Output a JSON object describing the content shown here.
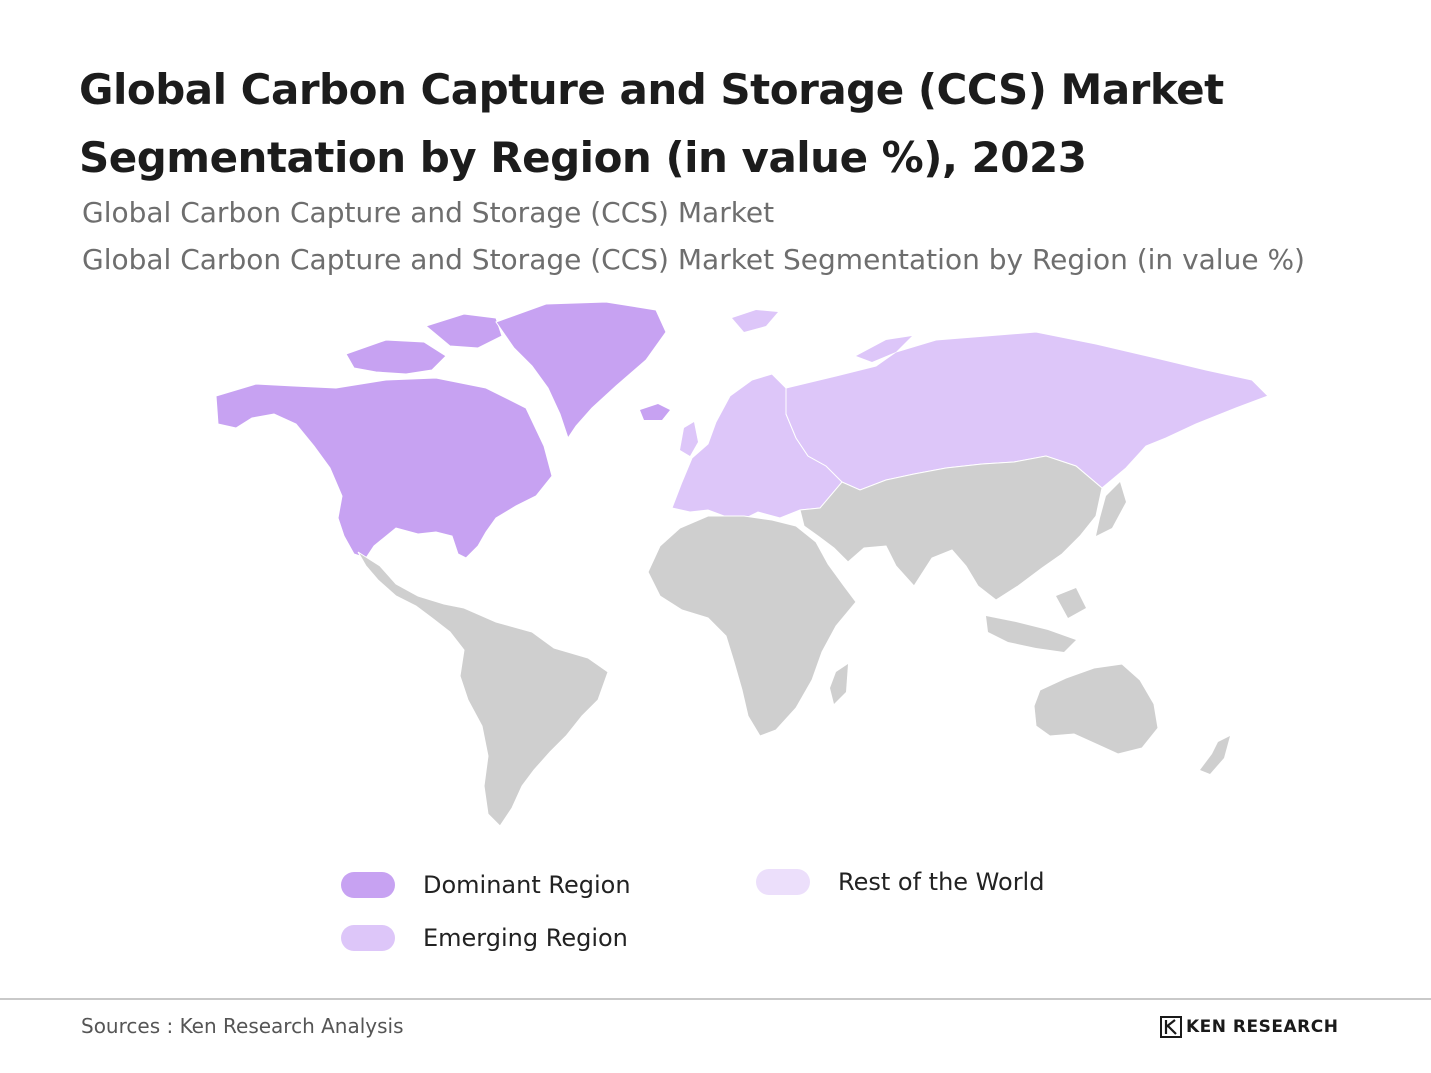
{
  "header": {
    "title": "Global Carbon Capture and Storage (CCS) Market Segmentation by Region (in value %), 2023",
    "subtitle_line1": "Global Carbon Capture and Storage (CCS) Market",
    "subtitle_line2": "Global Carbon Capture and Storage (CCS) Market Segmentation by Region (in value %)"
  },
  "map": {
    "regions": [
      {
        "name": "North America",
        "category": "Dominant Region"
      },
      {
        "name": "Greenland",
        "category": "Dominant Region"
      },
      {
        "name": "Europe",
        "category": "Emerging Region"
      },
      {
        "name": "Russia",
        "category": "Emerging Region"
      },
      {
        "name": "Latin America",
        "category": "Unclassified"
      },
      {
        "name": "Africa",
        "category": "Unclassified"
      },
      {
        "name": "Middle East",
        "category": "Unclassified"
      },
      {
        "name": "Asia",
        "category": "Unclassified"
      },
      {
        "name": "Oceania",
        "category": "Unclassified"
      }
    ],
    "colors": {
      "dominant": "#c7a2f2",
      "emerging": "#ddc6f9",
      "rest": "#ecdffb",
      "other": "#cfcfcf"
    }
  },
  "legend": {
    "dominant_label": "Dominant Region",
    "emerging_label": "Emerging Region",
    "rest_label": "Rest of the World"
  },
  "footer": {
    "source": "Sources : Ken Research Analysis",
    "logo_text": "KEN RESEARCH"
  }
}
